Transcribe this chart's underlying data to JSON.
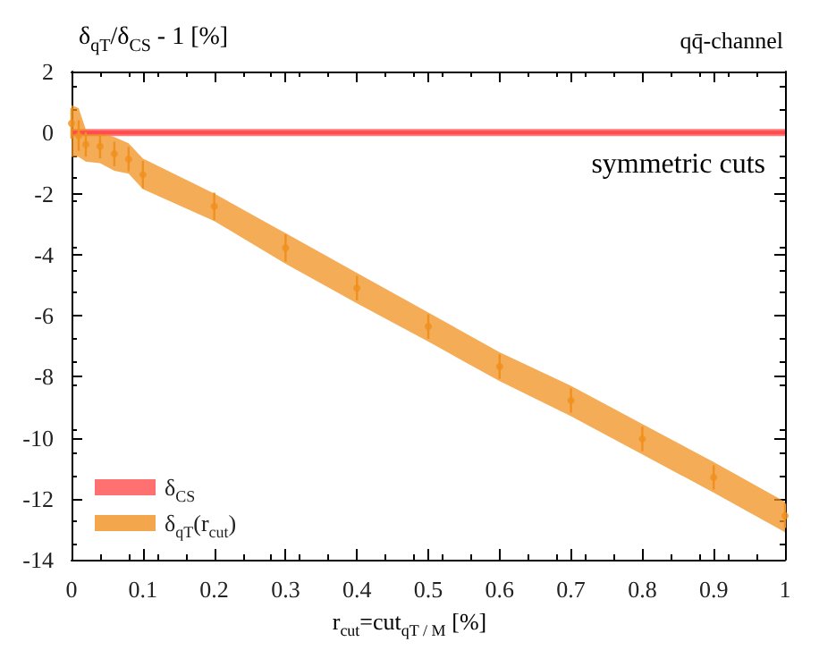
{
  "chart_data": {
    "type": "scatter",
    "title": "qq̄-channel",
    "ylabel": "δ$_{qT}$/δ$_{CS}$ - 1 [%]",
    "xlabel": "r$_{cut}$=cut$_{qT / M}$ [%]",
    "annotations": [
      "symmetric cuts"
    ],
    "xlim": [
      0,
      1
    ],
    "xticks": [
      0,
      0.1,
      0.2,
      0.3,
      0.4,
      0.5,
      0.6,
      0.7,
      0.8,
      0.9,
      1
    ],
    "ylim": [
      -14,
      2
    ],
    "yticks": [
      -14,
      -12,
      -10,
      -8,
      -6,
      -4,
      -2,
      0,
      2
    ],
    "grid": false,
    "legend": "bottom left",
    "series": [
      {
        "name": "δ$_{CS}$",
        "type": "line",
        "color": "#ff4d4d",
        "x": [
          0,
          1
        ],
        "values": [
          0,
          0
        ],
        "lower": [
          -0.12,
          -0.12
        ],
        "upper": [
          0.12,
          0.12
        ]
      },
      {
        "name": "δ$_{qT}$(r$_{cut}$)",
        "marker": "circle",
        "color": "#f0901e",
        "x": [
          0,
          0.01,
          0.02,
          0.04,
          0.06,
          0.08,
          0.1,
          0.2,
          0.3,
          0.4,
          0.5,
          0.6,
          0.7,
          0.8,
          0.9,
          1
        ],
        "values": [
          0.3,
          -0.1,
          -0.39,
          -0.45,
          -0.7,
          -0.87,
          -1.38,
          -2.42,
          -3.78,
          -5.1,
          -6.36,
          -7.67,
          -8.78,
          -10.04,
          -11.3,
          -12.56
        ],
        "errors": [
          0.5,
          0.5,
          0.4,
          0.4,
          0.4,
          0.4,
          0.45,
          0.45,
          0.45,
          0.4,
          0.4,
          0.4,
          0.4,
          0.4,
          0.4,
          0.4
        ],
        "lower": [
          -0.8,
          -0.8,
          -0.95,
          -1.0,
          -1.25,
          -1.35,
          -1.85,
          -2.9,
          -4.3,
          -5.6,
          -6.85,
          -8.15,
          -9.3,
          -10.55,
          -11.8,
          -13.1
        ],
        "upper": [
          0.9,
          0.8,
          0.1,
          0.0,
          -0.15,
          -0.35,
          -0.85,
          -2.0,
          -3.3,
          -4.6,
          -5.9,
          -7.2,
          -8.3,
          -9.55,
          -10.8,
          -12.1
        ]
      }
    ]
  }
}
